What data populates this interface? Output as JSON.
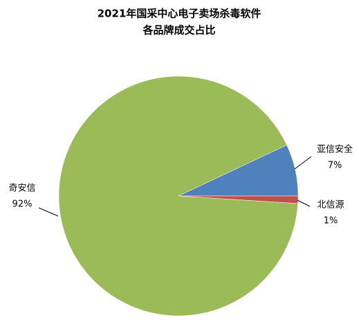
{
  "chart_data": {
    "type": "pie",
    "title": [
      "2021年国采中心电子卖场杀毒软件",
      "各品牌成交占比"
    ],
    "categories": [
      "亚信安全",
      "北信源",
      "奇安信"
    ],
    "values": [
      7,
      1,
      92
    ],
    "value_labels": [
      "7%",
      "1%",
      "92%"
    ],
    "colors": [
      "#4f81bd",
      "#c0504d",
      "#9bbb59"
    ]
  }
}
